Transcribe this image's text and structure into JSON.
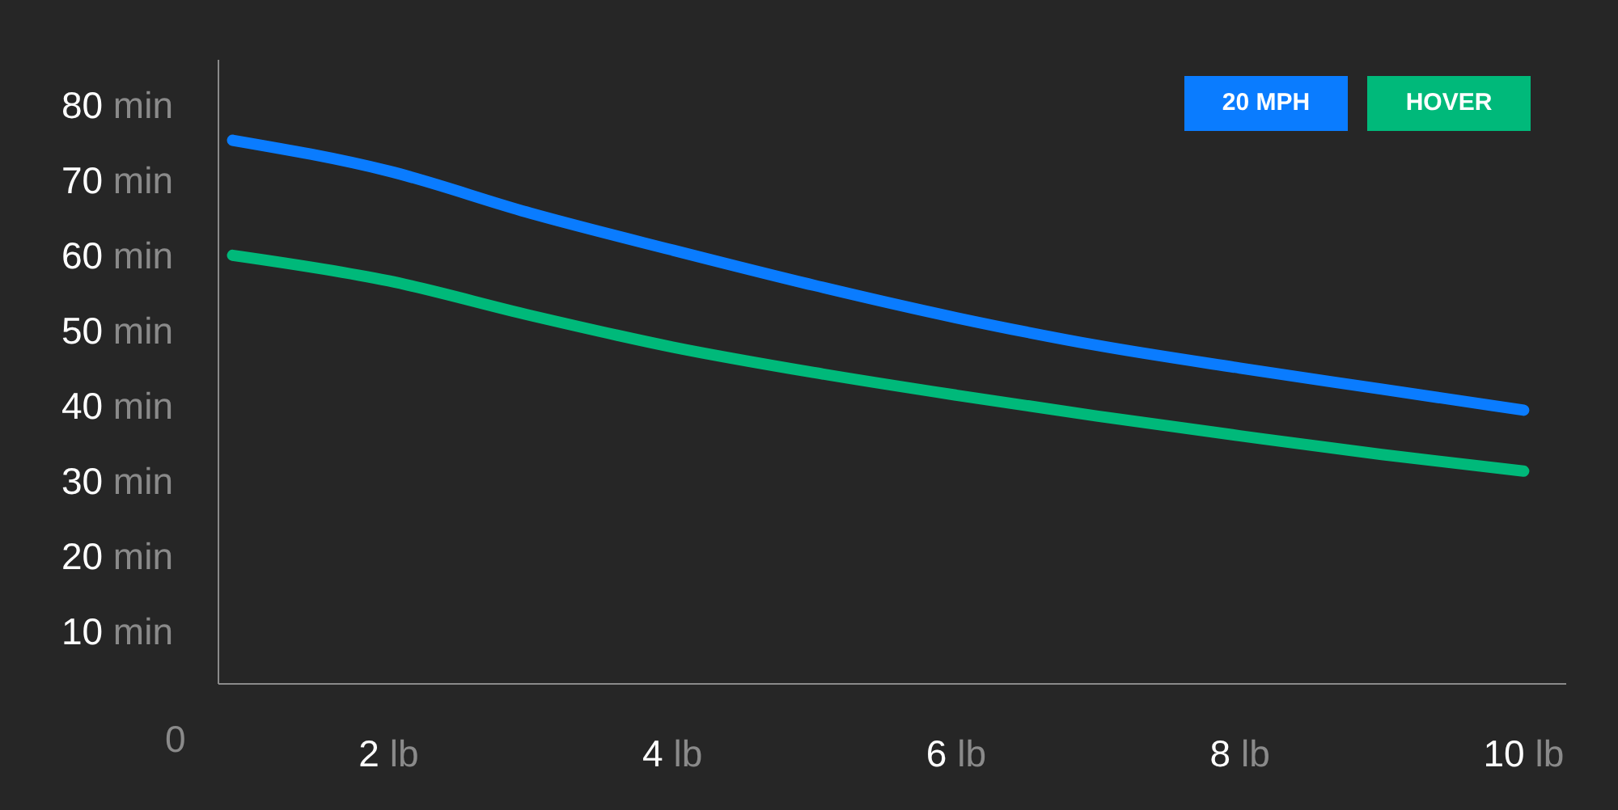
{
  "chart_data": {
    "type": "line",
    "xlim": [
      0.8,
      10.3
    ],
    "xticks": [
      {
        "value": 2,
        "label": "2 lb"
      },
      {
        "value": 4,
        "label": "4 lb"
      },
      {
        "value": 6,
        "label": "6 lb"
      },
      {
        "value": 8,
        "label": "8 lb"
      },
      {
        "value": 10,
        "label": "10 lb"
      }
    ],
    "ylim": [
      3,
      86
    ],
    "yticks": [
      {
        "value": 10,
        "label": "10 min"
      },
      {
        "value": 20,
        "label": "20 min"
      },
      {
        "value": 30,
        "label": "30 min"
      },
      {
        "value": 40,
        "label": "40 min"
      },
      {
        "value": 50,
        "label": "50 min"
      },
      {
        "value": 60,
        "label": "60 min"
      },
      {
        "value": 70,
        "label": "70 min"
      },
      {
        "value": 80,
        "label": "80 min"
      }
    ],
    "x": [
      0.9,
      2,
      3,
      4,
      5,
      6,
      7,
      8,
      9,
      10
    ],
    "series": [
      {
        "name": "20 MPH",
        "color": "#0a7cff",
        "values": [
          75.3,
          71.2,
          65.6,
          60.7,
          56,
          51.7,
          48,
          45,
          42.2,
          39.4
        ]
      },
      {
        "name": "HOVER",
        "color": "#00b97a",
        "values": [
          60,
          56.6,
          52,
          47.8,
          44.4,
          41.4,
          38.6,
          36,
          33.5,
          31.3
        ]
      }
    ],
    "annotations": [
      "0"
    ],
    "grid": false,
    "legend": "top right",
    "marker": "none",
    "line_style": "solid"
  }
}
